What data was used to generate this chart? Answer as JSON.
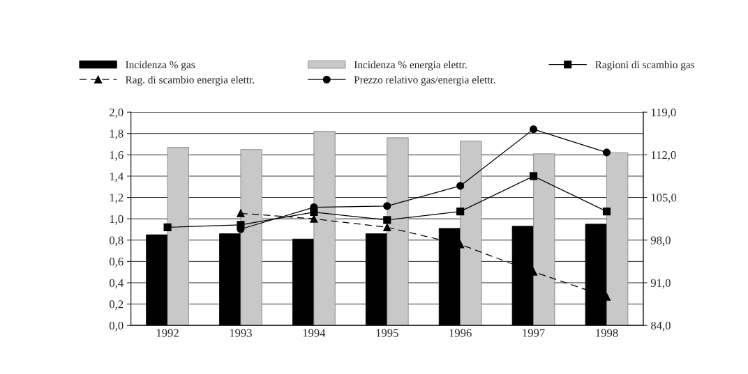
{
  "chart_data": {
    "type": "bar",
    "categories": [
      "1992",
      "1993",
      "1994",
      "1995",
      "1996",
      "1997",
      "1998"
    ],
    "series": [
      {
        "name": "Incidenza % gas",
        "color": "#000000",
        "values": [
          0.85,
          0.86,
          0.81,
          0.86,
          0.91,
          0.93,
          0.95
        ]
      },
      {
        "name": "Incidenza % energia elettr.",
        "color": "#c8c8c8",
        "values": [
          1.67,
          1.65,
          1.82,
          1.76,
          1.73,
          1.61,
          1.62
        ]
      },
      {
        "name": "Ragioni di scambio gas",
        "type": "line",
        "axis": "y2",
        "color": "#000000",
        "marker": "square",
        "line_style": "solid",
        "values": [
          100.1,
          100.5,
          102.6,
          101.3,
          102.7,
          108.5,
          102.7
        ]
      },
      {
        "name": "Rag. di scambio energia elettr.",
        "type": "line",
        "axis": "y2",
        "color": "#000000",
        "marker": "triangle",
        "line_style": "dashed",
        "values": [
          null,
          102.4,
          101.5,
          100.1,
          97.3,
          92.8,
          88.7
        ]
      },
      {
        "name": "Prezzo relativo gas/energia elettr.",
        "type": "line",
        "axis": "y2",
        "color": "#000000",
        "marker": "circle",
        "line_style": "solid",
        "values": [
          null,
          99.8,
          103.4,
          103.6,
          106.9,
          116.2,
          112.4
        ]
      }
    ],
    "ylim": [
      0,
      2
    ],
    "yticks": [
      {
        "value": 0,
        "label": "0,0"
      },
      {
        "value": 0.2,
        "label": "0,2"
      },
      {
        "value": 0.4,
        "label": "0,4"
      },
      {
        "value": 0.6,
        "label": "0,6"
      },
      {
        "value": 0.8,
        "label": "0,8"
      },
      {
        "value": 1.0,
        "label": "1,0"
      },
      {
        "value": 1.2,
        "label": "1,2"
      },
      {
        "value": 1.4,
        "label": "1,4"
      },
      {
        "value": 1.6,
        "label": "1,6"
      },
      {
        "value": 1.8,
        "label": "1,8"
      },
      {
        "value": 2.0,
        "label": "2,0"
      }
    ],
    "y2lim": [
      84,
      119
    ],
    "y2ticks": [
      {
        "value": 84,
        "label": "84,0"
      },
      {
        "value": 91,
        "label": "91,0"
      },
      {
        "value": 98,
        "label": "98,0"
      },
      {
        "value": 105,
        "label": "105,0"
      },
      {
        "value": 112,
        "label": "112,0"
      },
      {
        "value": 119,
        "label": "119,0"
      }
    ],
    "grid": "y",
    "legend": "top"
  }
}
